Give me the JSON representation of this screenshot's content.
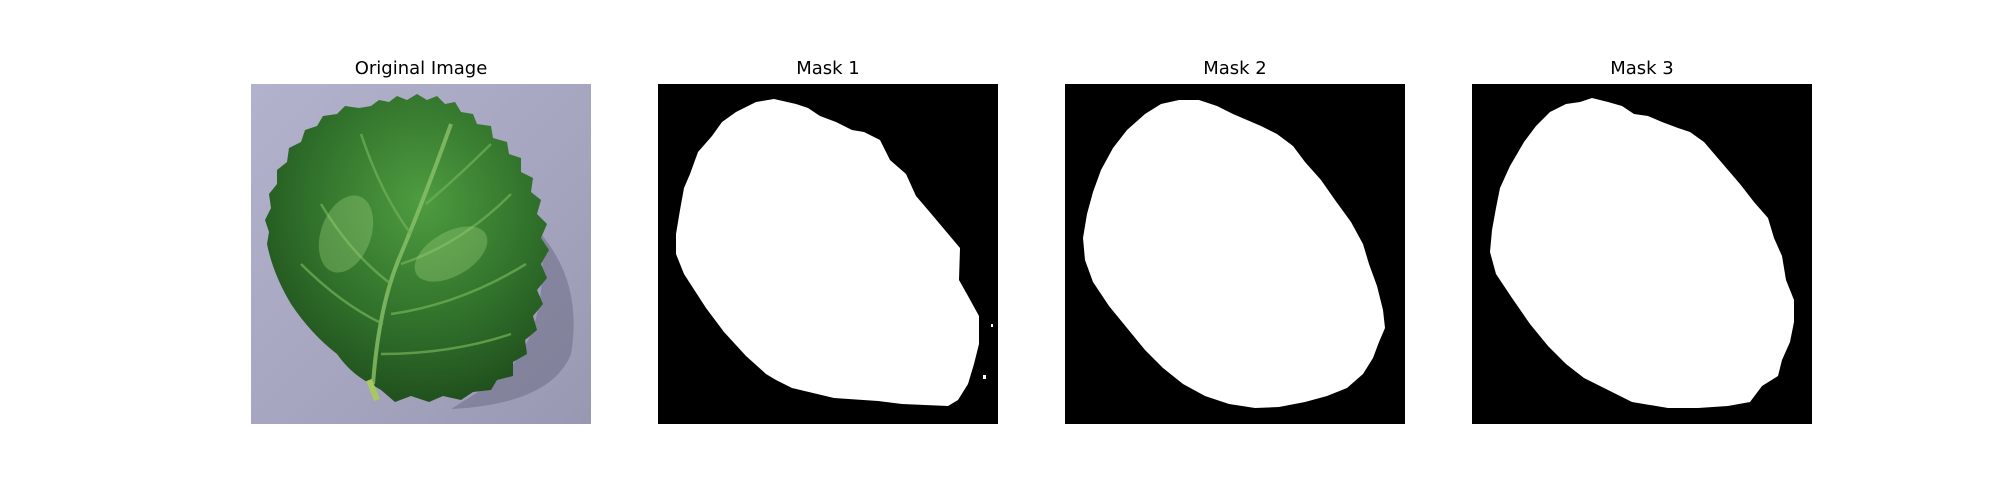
{
  "figure": {
    "panels": [
      {
        "title": "Original Image",
        "content": "strawberry leaf photograph"
      },
      {
        "title": "Mask 1",
        "content": "binary segmentation mask"
      },
      {
        "title": "Mask 2",
        "content": "binary segmentation mask"
      },
      {
        "title": "Mask 3",
        "content": "binary segmentation mask"
      }
    ]
  },
  "colors": {
    "mask_background": "#000000",
    "mask_foreground": "#ffffff",
    "surface": "#a7a7c0",
    "leaf_dark": "#1f4f1e",
    "leaf_mid": "#3f8a35",
    "leaf_light": "#7cbc63"
  }
}
